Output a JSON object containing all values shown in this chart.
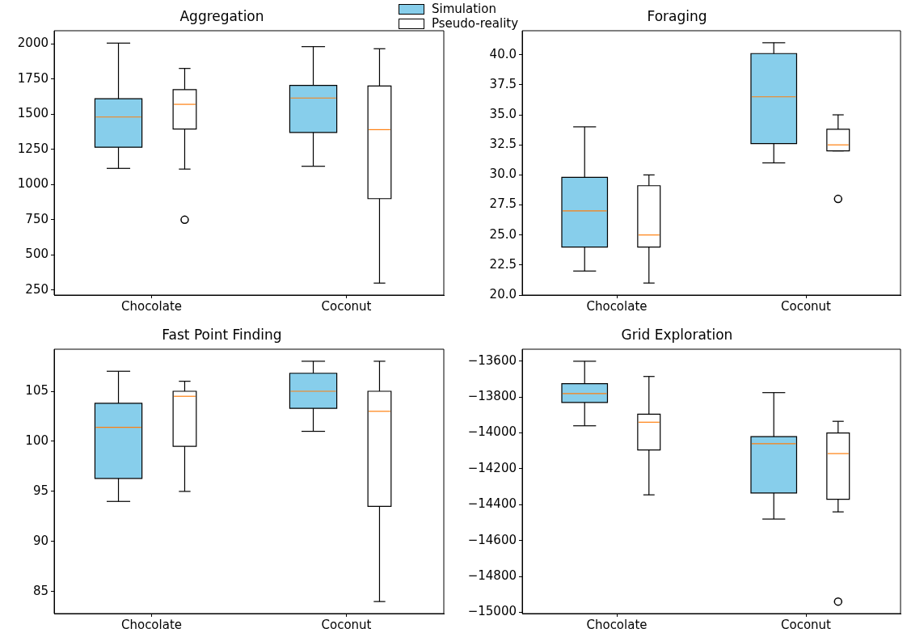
{
  "chart_data": [
    {
      "type": "box",
      "title": "Aggregation",
      "categories": [
        "Chocolate",
        "Coconut"
      ],
      "ylim": [
        215,
        2093
      ],
      "yticks": [
        250,
        500,
        750,
        1000,
        1250,
        1500,
        1750,
        2000
      ],
      "legend": "top right",
      "series": [
        {
          "name": "Simulation",
          "color": "#87ceeb",
          "boxes": [
            {
              "low": 1115,
              "q1": 1265,
              "median": 1480,
              "q3": 1610,
              "high": 2005
            },
            {
              "low": 1130,
              "q1": 1370,
              "median": 1615,
              "q3": 1705,
              "high": 1980
            }
          ]
        },
        {
          "name": "Pseudo-reality",
          "color": "#ffffff",
          "boxes": [
            {
              "low": 1110,
              "q1": 1395,
              "median": 1570,
              "q3": 1675,
              "high": 1825,
              "outliers": [
                750
              ]
            },
            {
              "low": 300,
              "q1": 900,
              "median": 1390,
              "q3": 1700,
              "high": 1965
            }
          ]
        }
      ]
    },
    {
      "type": "box",
      "title": "Foraging",
      "categories": [
        "Chocolate",
        "Coconut"
      ],
      "ylim": [
        20,
        42
      ],
      "yticks": [
        {
          "value": 20,
          "label": "20.0"
        },
        22.5,
        {
          "value": 25,
          "label": "25.0"
        },
        27.5,
        {
          "value": 30,
          "label": "30.0"
        },
        32.5,
        {
          "value": 35,
          "label": "35.0"
        },
        37.5,
        {
          "value": 40,
          "label": "40.0"
        }
      ],
      "series": [
        {
          "color": "#87ceeb",
          "boxes": [
            {
              "low": 22,
              "q1": 24,
              "median": 27,
              "q3": 29.8,
              "high": 34
            },
            {
              "low": 31,
              "q1": 32.6,
              "median": 36.5,
              "q3": 40.1,
              "high": 41
            }
          ]
        },
        {
          "color": "#ffffff",
          "boxes": [
            {
              "low": 21,
              "q1": 24,
              "median": 25,
              "q3": 29.1,
              "high": 30
            },
            {
              "low": 32,
              "q1": 32,
              "median": 32.5,
              "q3": 33.8,
              "high": 35,
              "outliers": [
                28
              ]
            }
          ]
        }
      ]
    },
    {
      "type": "box",
      "title": "Fast Point Finding",
      "categories": [
        "Chocolate",
        "Coconut"
      ],
      "ylim": [
        82.8,
        109.2
      ],
      "yticks": [
        85,
        90,
        95,
        100,
        105
      ],
      "series": [
        {
          "color": "#87ceeb",
          "boxes": [
            {
              "low": 94,
              "q1": 96.3,
              "median": 101.4,
              "q3": 103.8,
              "high": 107
            },
            {
              "low": 101,
              "q1": 103.3,
              "median": 105,
              "q3": 106.8,
              "high": 108
            }
          ]
        },
        {
          "color": "#ffffff",
          "boxes": [
            {
              "low": 95,
              "q1": 99.5,
              "median": 104.5,
              "q3": 105,
              "high": 106
            },
            {
              "low": 84,
              "q1": 93.5,
              "median": 103,
              "q3": 105,
              "high": 108
            }
          ]
        }
      ]
    },
    {
      "type": "box",
      "title": "Grid Exploration",
      "categories": [
        "Chocolate",
        "Coconut"
      ],
      "ylim": [
        -15007,
        -13533
      ],
      "yticks": [
        {
          "value": -15000,
          "label": "−15000"
        },
        {
          "value": -14800,
          "label": "−14800"
        },
        {
          "value": -14600,
          "label": "−14600"
        },
        {
          "value": -14400,
          "label": "−14400"
        },
        {
          "value": -14200,
          "label": "−14200"
        },
        {
          "value": -14000,
          "label": "−14000"
        },
        {
          "value": -13800,
          "label": "−13800"
        },
        {
          "value": -13600,
          "label": "−13600"
        }
      ],
      "series": [
        {
          "color": "#87ceeb",
          "boxes": [
            {
              "low": -13960,
              "q1": -13830,
              "median": -13780,
              "q3": -13725,
              "high": -13600
            },
            {
              "low": -14480,
              "q1": -14335,
              "median": -14060,
              "q3": -14020,
              "high": -13775
            }
          ]
        },
        {
          "color": "#ffffff",
          "boxes": [
            {
              "low": -14345,
              "q1": -14095,
              "median": -13940,
              "q3": -13895,
              "high": -13685
            },
            {
              "low": -14440,
              "q1": -14370,
              "median": -14115,
              "q3": -14000,
              "high": -13935,
              "outliers": [
                -14940
              ]
            }
          ]
        }
      ]
    }
  ]
}
